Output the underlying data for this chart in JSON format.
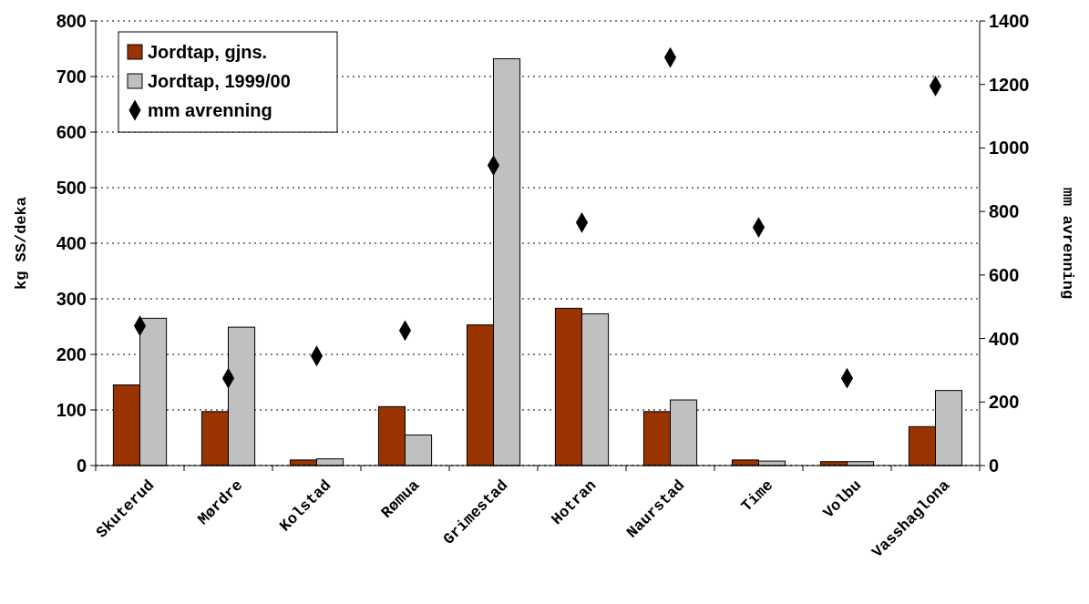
{
  "chart_data": {
    "type": "bar",
    "xlabel": null,
    "ylabel": "kg SS/deka",
    "y2label": "mm avrenning",
    "categories": [
      "Skuterud",
      "Mørdre",
      "Kolstad",
      "Rømua",
      "Grimestad",
      "Hotran",
      "Naurstad",
      "Time",
      "Volbu",
      "Vasshaglona"
    ],
    "series": [
      {
        "name": "Jordtap, gjns.",
        "color": "#993300",
        "values": [
          145,
          97,
          10,
          106,
          253,
          283,
          97,
          10,
          7,
          70
        ]
      },
      {
        "name": "Jordtap, 1999/00",
        "color": "#c0c0c0",
        "values": [
          265,
          249,
          12,
          55,
          732,
          273,
          118,
          8,
          7,
          135
        ]
      },
      {
        "name": "mm avrenning",
        "type": "scatter",
        "axis": "y2",
        "color": "#000000",
        "marker": "diamond",
        "values": [
          440,
          275,
          345,
          425,
          945,
          765,
          1285,
          750,
          275,
          1195
        ]
      }
    ],
    "ylim": [
      0,
      800
    ],
    "yticks": [
      0,
      100,
      200,
      300,
      400,
      500,
      600,
      700,
      800
    ],
    "y2lim": [
      0,
      1400
    ],
    "y2ticks": [
      0,
      200,
      400,
      600,
      800,
      1000,
      1200,
      1400
    ],
    "grid": "y",
    "legend": "top left"
  }
}
